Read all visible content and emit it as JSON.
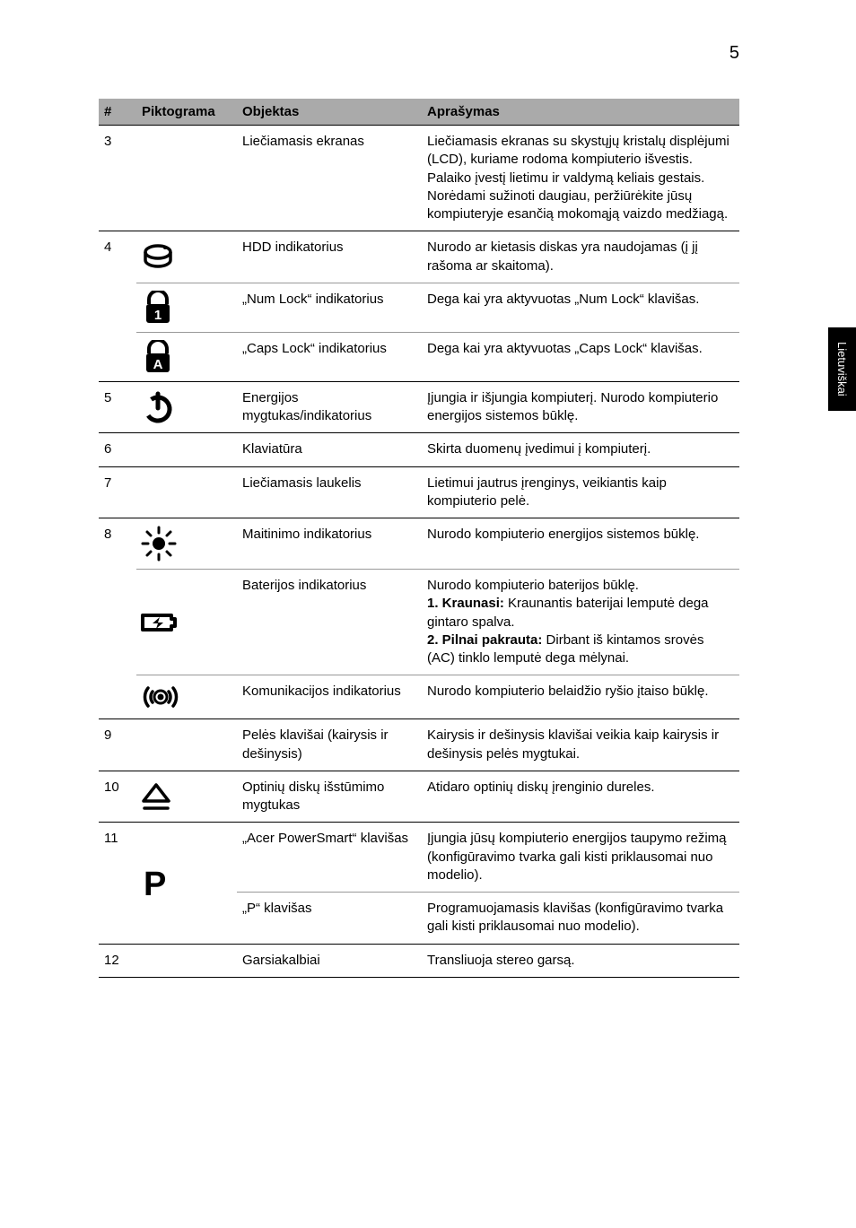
{
  "page": {
    "number": "5",
    "side_tab": "Lietuviškai"
  },
  "headers": {
    "num": "#",
    "pic": "Piktograma",
    "obj": "Objektas",
    "desc": "Aprašymas"
  },
  "rows": {
    "r3": {
      "num": "3",
      "obj": "Liečiamasis ekranas",
      "desc": "Liečiamasis ekranas su skystųjų kristalų displėjumi (LCD), kuriame rodoma kompiuterio išvestis.\nPalaiko įvestį lietimu ir valdymą keliais gestais. Norėdami sužinoti daugiau, peržiūrėkite jūsų kompiuteryje esančią mokomąją vaizdo medžiagą."
    },
    "r4a": {
      "num": "4",
      "obj": "HDD indikatorius",
      "desc": "Nurodo ar kietasis diskas yra naudojamas (į jį rašoma ar skaitoma)."
    },
    "r4b": {
      "obj": "„Num Lock“ indikatorius",
      "desc": "Dega kai yra aktyvuotas „Num Lock“ klavišas."
    },
    "r4c": {
      "obj": "„Caps Lock“ indikatorius",
      "desc": "Dega kai yra aktyvuotas „Caps Lock“ klavišas."
    },
    "r5": {
      "num": "5",
      "obj": "Energijos mygtukas/indikatorius",
      "desc": "Įjungia ir išjungia kompiuterį. Nurodo kompiuterio energijos sistemos būklę."
    },
    "r6": {
      "num": "6",
      "obj": "Klaviatūra",
      "desc": "Skirta duomenų įvedimui į kompiuterį."
    },
    "r7": {
      "num": "7",
      "obj": "Liečiamasis laukelis",
      "desc": "Lietimui jautrus įrenginys, veikiantis kaip kompiuterio pelė."
    },
    "r8a": {
      "num": "8",
      "obj": "Maitinimo indikatorius",
      "desc": "Nurodo kompiuterio energijos sistemos būklę."
    },
    "r8b": {
      "obj": "Baterijos indikatorius",
      "desc_pre": "Nurodo kompiuterio baterijos būklę.",
      "k1": "1. Kraunasi:",
      "k1_rest": " Kraunantis baterijai lemputė dega gintaro spalva.",
      "k2": "2. Pilnai pakrauta:",
      "k2_rest": " Dirbant iš kintamos srovės (AC) tinklo lemputė dega mėlynai."
    },
    "r8c": {
      "obj": "Komunikacijos indikatorius",
      "desc": "Nurodo kompiuterio belaidžio ryšio įtaiso būklę."
    },
    "r9": {
      "num": "9",
      "obj": "Pelės klavišai (kairysis ir dešinysis)",
      "desc": "Kairysis ir dešinysis klavišai veikia kaip kairysis ir dešinysis pelės mygtukai."
    },
    "r10": {
      "num": "10",
      "obj": "Optinių diskų išstūmimo mygtukas",
      "desc": "Atidaro optinių diskų įrenginio dureles."
    },
    "r11a": {
      "num": "11",
      "obj": "„Acer PowerSmart“ klavišas",
      "desc": "Įjungia jūsų kompiuterio energijos taupymo režimą (konfigūravimo tvarka gali kisti priklausomai nuo modelio)."
    },
    "r11b": {
      "obj": "„P“ klavišas",
      "desc": "Programuojamasis klavišas (konfigūravimo tvarka gali kisti priklausomai nuo modelio)."
    },
    "r12": {
      "num": "12",
      "obj": "Garsiakalbiai",
      "desc": "Transliuoja stereo garsą."
    }
  }
}
